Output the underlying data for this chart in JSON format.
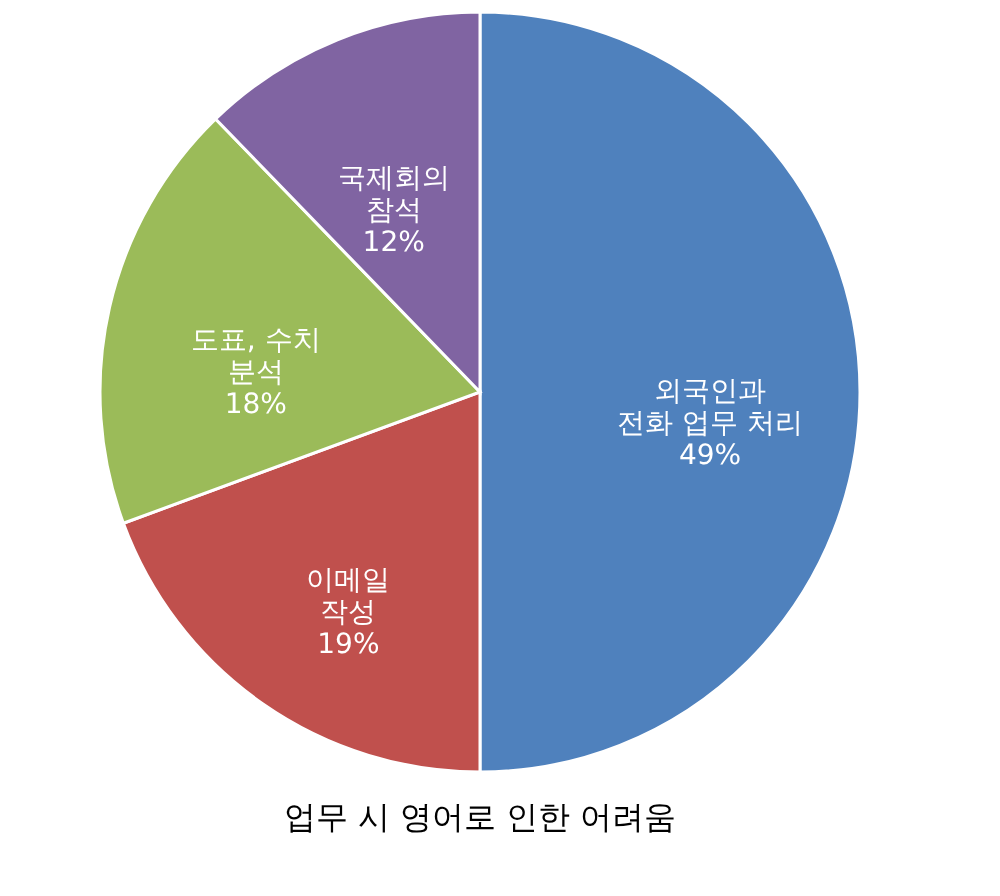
{
  "chart_data": {
    "type": "pie",
    "title": "업무 시 영어로 인한 어려움",
    "categories": [
      "외국인과\n전화 업무 처리",
      "이메일\n작성",
      "도표, 수치\n분석",
      "국제회의\n참석"
    ],
    "values": [
      49,
      19,
      18,
      12
    ],
    "value_labels": [
      "49%",
      "19%",
      "18%",
      "12%"
    ],
    "colors": [
      "#4f81bd",
      "#c0504d",
      "#9bbb59",
      "#8064a2"
    ],
    "legend": false
  }
}
